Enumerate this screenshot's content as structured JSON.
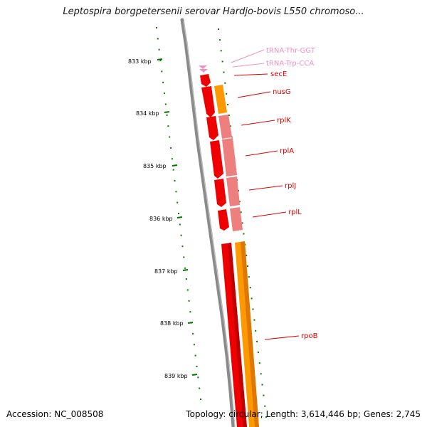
{
  "title": "Leptospira borgpetersenii serovar Hardjo-bovis L550 chromoso...",
  "footer": {
    "accession_label": "Accession:",
    "accession": "NC_008508",
    "topology_label": "Topology:",
    "topology": "circular",
    "length_label": "Length:",
    "length": "3,614,446 bp",
    "genes_label": "Genes:",
    "genes": "2,745"
  },
  "ticks": [
    "833 kbp",
    "834 kbp",
    "835 kbp",
    "836 kbp",
    "837 kbp",
    "838 kbp",
    "839 kbp"
  ],
  "genes": [
    {
      "name": "tRNA-Thr-GGT",
      "color": "#f48fc4"
    },
    {
      "name": "tRNA-Trp-CCA",
      "color": "#f48fc4"
    },
    {
      "name": "secE",
      "color": "#dd0000"
    },
    {
      "name": "nusG",
      "color": "#dd0000"
    },
    {
      "name": "rplK",
      "color": "#dd0000"
    },
    {
      "name": "rplA",
      "color": "#dd0000"
    },
    {
      "name": "rplJ",
      "color": "#dd0000"
    },
    {
      "name": "rplL",
      "color": "#dd0000"
    },
    {
      "name": "rpoB",
      "color": "#dd0000"
    }
  ],
  "colors": {
    "backbone": "#808080",
    "cds": "#ee0000",
    "trna": "#f08cc0",
    "tick": "#007700",
    "orange_track": "#ff9900",
    "pink_track": "#ee7f7f"
  }
}
